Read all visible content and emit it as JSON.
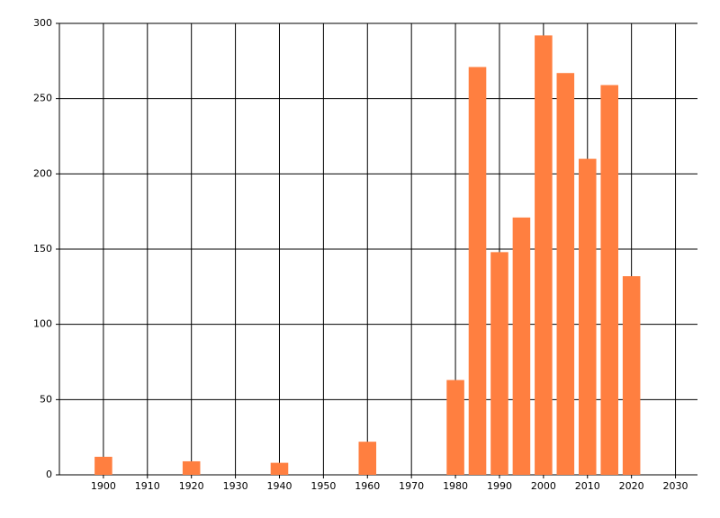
{
  "chart_data": {
    "type": "bar",
    "x": [
      1900,
      1920,
      1940,
      1960,
      1980,
      1985,
      1990,
      1995,
      2000,
      2005,
      2010,
      2015,
      2020
    ],
    "values": [
      12,
      9,
      8,
      22,
      63,
      271,
      148,
      171,
      292,
      267,
      210,
      259,
      132
    ],
    "color": "#ff7f40",
    "xlim": [
      1890,
      2035
    ],
    "xticks": [
      1900,
      1910,
      1920,
      1930,
      1940,
      1950,
      1960,
      1970,
      1980,
      1990,
      2000,
      2010,
      2020,
      2030
    ],
    "ylim": [
      0,
      300
    ],
    "yticks": [
      0,
      50,
      100,
      150,
      200,
      250,
      300
    ],
    "grid": true
  }
}
